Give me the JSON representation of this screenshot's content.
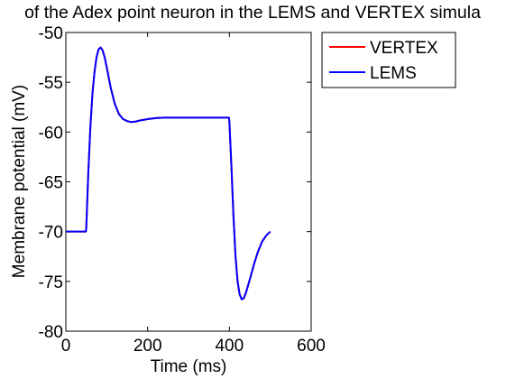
{
  "chart_data": {
    "type": "line",
    "title": "of the Adex point neuron in the LEMS and VERTEX simula",
    "xlabel": "Time (ms)",
    "ylabel": "Membrane potential (mV)",
    "xlim": [
      0,
      600
    ],
    "ylim": [
      -80,
      -50
    ],
    "xticks": [
      0,
      200,
      400,
      600
    ],
    "yticks": [
      -50,
      -55,
      -60,
      -65,
      -70,
      -75,
      -80
    ],
    "grid": false,
    "legend_position": "outside-top-right",
    "series": [
      {
        "name": "VERTEX",
        "color": "#ff0000",
        "x": [
          0,
          49,
          50,
          55,
          60,
          65,
          70,
          75,
          80,
          85,
          90,
          95,
          100,
          110,
          120,
          130,
          140,
          150,
          160,
          170,
          180,
          200,
          220,
          240,
          270,
          300,
          350,
          399,
          400,
          405,
          410,
          415,
          420,
          425,
          430,
          435,
          440,
          445,
          450,
          460,
          470,
          480,
          490,
          500
        ],
        "y": [
          -70,
          -70,
          -69.6,
          -64,
          -59.5,
          -56.2,
          -54,
          -52.5,
          -51.7,
          -51.5,
          -51.8,
          -52.5,
          -53.5,
          -55.6,
          -57.2,
          -58.2,
          -58.7,
          -58.9,
          -59,
          -58.95,
          -58.85,
          -58.7,
          -58.6,
          -58.55,
          -58.55,
          -58.55,
          -58.55,
          -58.55,
          -59,
          -63.5,
          -68.5,
          -72.5,
          -75,
          -76.3,
          -76.8,
          -76.7,
          -76.2,
          -75.5,
          -74.8,
          -73.3,
          -72,
          -71,
          -70.4,
          -70
        ]
      },
      {
        "name": "LEMS",
        "color": "#0000ff",
        "x": [
          0,
          49,
          50,
          55,
          60,
          65,
          70,
          75,
          80,
          85,
          90,
          95,
          100,
          110,
          120,
          130,
          140,
          150,
          160,
          170,
          180,
          200,
          220,
          240,
          270,
          300,
          350,
          399,
          400,
          405,
          410,
          415,
          420,
          425,
          430,
          435,
          440,
          445,
          450,
          460,
          470,
          480,
          490,
          500
        ],
        "y": [
          -70,
          -70,
          -69.6,
          -64,
          -59.5,
          -56.2,
          -54,
          -52.5,
          -51.7,
          -51.5,
          -51.8,
          -52.5,
          -53.5,
          -55.6,
          -57.2,
          -58.2,
          -58.7,
          -58.9,
          -59,
          -58.95,
          -58.85,
          -58.7,
          -58.6,
          -58.55,
          -58.55,
          -58.55,
          -58.55,
          -58.55,
          -59,
          -63.5,
          -68.5,
          -72.5,
          -75,
          -76.3,
          -76.8,
          -76.7,
          -76.2,
          -75.5,
          -74.8,
          -73.3,
          -72,
          -71,
          -70.4,
          -70
        ]
      }
    ]
  }
}
